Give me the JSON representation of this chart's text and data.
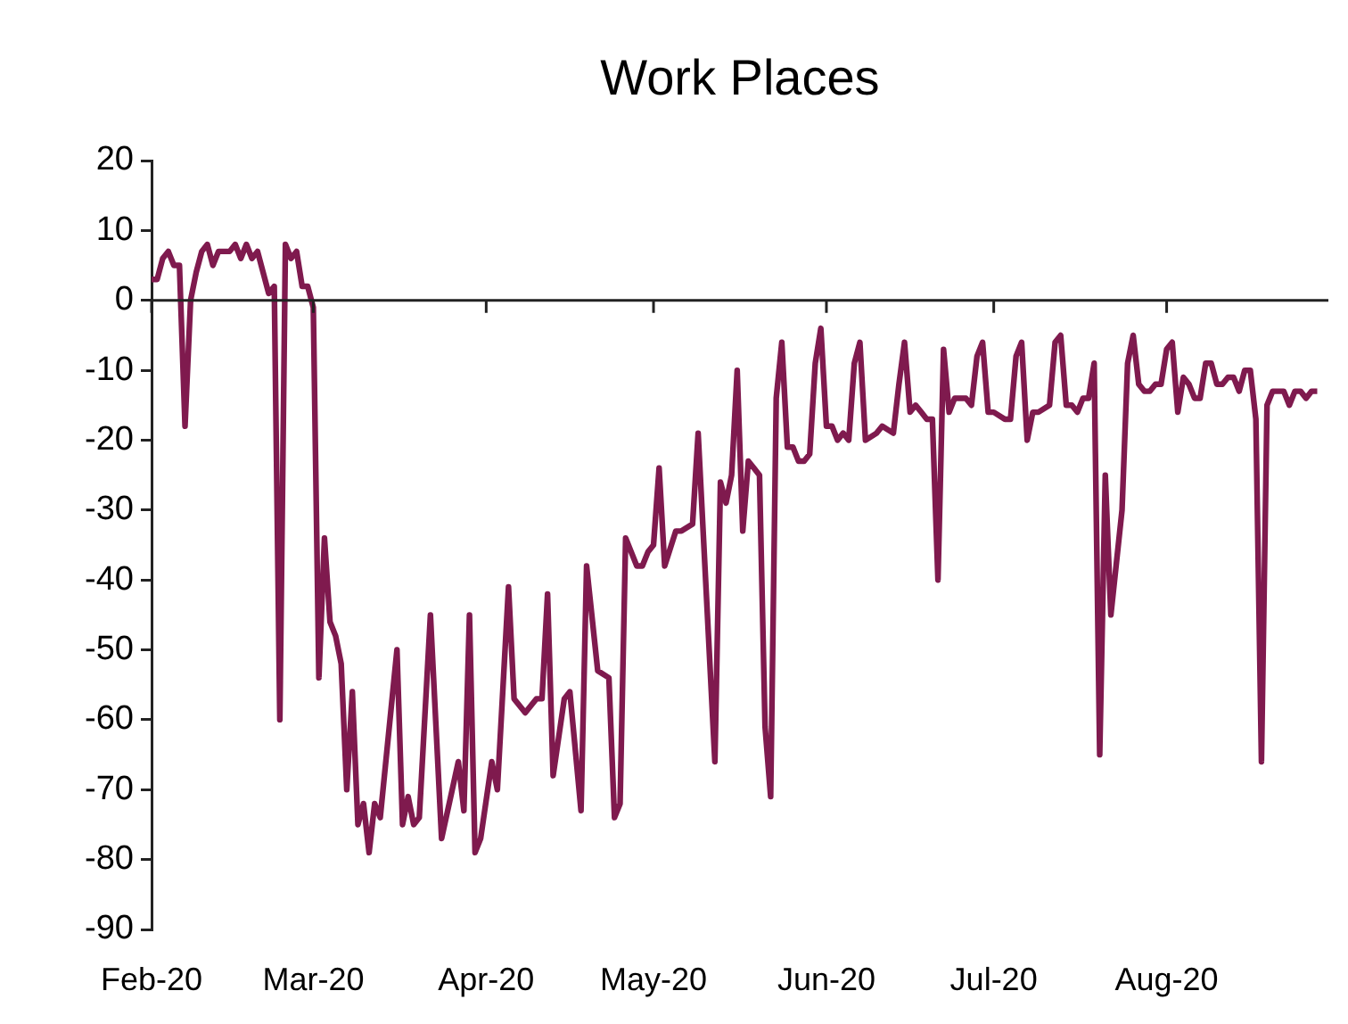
{
  "chart_data": {
    "type": "line",
    "title": "Work Places",
    "x": [
      "2020-02-01",
      "2020-02-02",
      "2020-02-03",
      "2020-02-04",
      "2020-02-05",
      "2020-02-06",
      "2020-02-07",
      "2020-02-08",
      "2020-02-09",
      "2020-02-10",
      "2020-02-11",
      "2020-02-12",
      "2020-02-13",
      "2020-02-15",
      "2020-02-16",
      "2020-02-17",
      "2020-02-18",
      "2020-02-19",
      "2020-02-20",
      "2020-02-21",
      "2020-02-22",
      "2020-02-23",
      "2020-02-24",
      "2020-02-25",
      "2020-02-26",
      "2020-02-27",
      "2020-02-28",
      "2020-02-29",
      "2020-03-01",
      "2020-03-02",
      "2020-03-03",
      "2020-03-04",
      "2020-03-05",
      "2020-03-06",
      "2020-03-07",
      "2020-03-08",
      "2020-03-09",
      "2020-03-10",
      "2020-03-11",
      "2020-03-12",
      "2020-03-13",
      "2020-03-16",
      "2020-03-17",
      "2020-03-18",
      "2020-03-19",
      "2020-03-20",
      "2020-03-22",
      "2020-03-24",
      "2020-03-27",
      "2020-03-28",
      "2020-03-29",
      "2020-03-30",
      "2020-03-31",
      "2020-04-02",
      "2020-04-03",
      "2020-04-05",
      "2020-04-06",
      "2020-04-08",
      "2020-04-09",
      "2020-04-10",
      "2020-04-11",
      "2020-04-12",
      "2020-04-13",
      "2020-04-15",
      "2020-04-16",
      "2020-04-18",
      "2020-04-19",
      "2020-04-21",
      "2020-04-23",
      "2020-04-24",
      "2020-04-25",
      "2020-04-26",
      "2020-04-28",
      "2020-04-29",
      "2020-04-30",
      "2020-05-01",
      "2020-05-02",
      "2020-05-03",
      "2020-05-05",
      "2020-05-06",
      "2020-05-08",
      "2020-05-09",
      "2020-05-12",
      "2020-05-13",
      "2020-05-14",
      "2020-05-15",
      "2020-05-16",
      "2020-05-17",
      "2020-05-18",
      "2020-05-19",
      "2020-05-20",
      "2020-05-21",
      "2020-05-22",
      "2020-05-23",
      "2020-05-24",
      "2020-05-25",
      "2020-05-26",
      "2020-05-27",
      "2020-05-28",
      "2020-05-29",
      "2020-05-30",
      "2020-05-31",
      "2020-06-01",
      "2020-06-02",
      "2020-06-03",
      "2020-06-04",
      "2020-06-05",
      "2020-06-06",
      "2020-06-07",
      "2020-06-08",
      "2020-06-10",
      "2020-06-11",
      "2020-06-13",
      "2020-06-14",
      "2020-06-15",
      "2020-06-16",
      "2020-06-17",
      "2020-06-18",
      "2020-06-19",
      "2020-06-20",
      "2020-06-21",
      "2020-06-22",
      "2020-06-23",
      "2020-06-24",
      "2020-06-26",
      "2020-06-27",
      "2020-06-28",
      "2020-06-29",
      "2020-06-30",
      "2020-07-01",
      "2020-07-03",
      "2020-07-04",
      "2020-07-05",
      "2020-07-06",
      "2020-07-07",
      "2020-07-08",
      "2020-07-09",
      "2020-07-11",
      "2020-07-12",
      "2020-07-13",
      "2020-07-14",
      "2020-07-15",
      "2020-07-16",
      "2020-07-17",
      "2020-07-18",
      "2020-07-19",
      "2020-07-20",
      "2020-07-21",
      "2020-07-22",
      "2020-07-24",
      "2020-07-25",
      "2020-07-26",
      "2020-07-27",
      "2020-07-28",
      "2020-07-29",
      "2020-07-30",
      "2020-07-31",
      "2020-08-01",
      "2020-08-02",
      "2020-08-03",
      "2020-08-04",
      "2020-08-05",
      "2020-08-06",
      "2020-08-07",
      "2020-08-08",
      "2020-08-09",
      "2020-08-10",
      "2020-08-11",
      "2020-08-12",
      "2020-08-13",
      "2020-08-14",
      "2020-08-15",
      "2020-08-16",
      "2020-08-17",
      "2020-08-18",
      "2020-08-19",
      "2020-08-20",
      "2020-08-22",
      "2020-08-23",
      "2020-08-24",
      "2020-08-25",
      "2020-08-26",
      "2020-08-27",
      "2020-08-28"
    ],
    "values": [
      3,
      3,
      6,
      7,
      5,
      5,
      -18,
      0,
      4,
      7,
      8,
      5,
      7,
      7,
      8,
      6,
      8,
      6,
      7,
      4,
      1,
      2,
      -60,
      8,
      6,
      7,
      2,
      2,
      -1,
      -54,
      -34,
      -46,
      -48,
      -52,
      -70,
      -56,
      -75,
      -72,
      -79,
      -72,
      -74,
      -50,
      -75,
      -71,
      -75,
      -74,
      -45,
      -77,
      -66,
      -73,
      -45,
      -79,
      -77,
      -66,
      -70,
      -41,
      -57,
      -59,
      -58,
      -57,
      -57,
      -42,
      -68,
      -57,
      -56,
      -73,
      -38,
      -53,
      -54,
      -74,
      -72,
      -34,
      -38,
      -38,
      -36,
      -35,
      -24,
      -38,
      -33,
      -33,
      -32,
      -19,
      -66,
      -26,
      -29,
      -25,
      -10,
      -33,
      -23,
      -24,
      -25,
      -61,
      -71,
      -14,
      -6,
      -21,
      -21,
      -23,
      -23,
      -22,
      -9,
      -4,
      -18,
      -18,
      -20,
      -19,
      -20,
      -9,
      -6,
      -20,
      -19,
      -18,
      -19,
      -12,
      -6,
      -16,
      -15,
      -16,
      -17,
      -17,
      -40,
      -7,
      -16,
      -14,
      -14,
      -15,
      -8,
      -6,
      -16,
      -16,
      -17,
      -17,
      -8,
      -6,
      -20,
      -16,
      -16,
      -15,
      -6,
      -5,
      -15,
      -15,
      -16,
      -14,
      -14,
      -9,
      -65,
      -25,
      -45,
      -30,
      -9,
      -5,
      -12,
      -13,
      -13,
      -12,
      -12,
      -7,
      -6,
      -16,
      -11,
      -12,
      -14,
      -14,
      -9,
      -9,
      -12,
      -12,
      -11,
      -11,
      -13,
      -10,
      -10,
      -17,
      -66,
      -15,
      -13,
      -13,
      -15,
      -13,
      -13,
      -14,
      -13,
      -13
    ],
    "color": "#7f1a4e",
    "xlim": [
      "2020-02-01",
      "2020-08-30"
    ],
    "xticks": [
      {
        "value": "2020-02-01",
        "label": "Feb-20"
      },
      {
        "value": "2020-03-01",
        "label": "Mar-20"
      },
      {
        "value": "2020-04-01",
        "label": "Apr-20"
      },
      {
        "value": "2020-05-01",
        "label": "May-20"
      },
      {
        "value": "2020-06-01",
        "label": "Jun-20"
      },
      {
        "value": "2020-07-01",
        "label": "Jul-20"
      },
      {
        "value": "2020-08-01",
        "label": "Aug-20"
      }
    ],
    "ylim": [
      -90,
      20
    ],
    "yticks": [
      -90,
      -80,
      -70,
      -60,
      -50,
      -40,
      -30,
      -20,
      -10,
      0,
      10,
      20
    ]
  }
}
